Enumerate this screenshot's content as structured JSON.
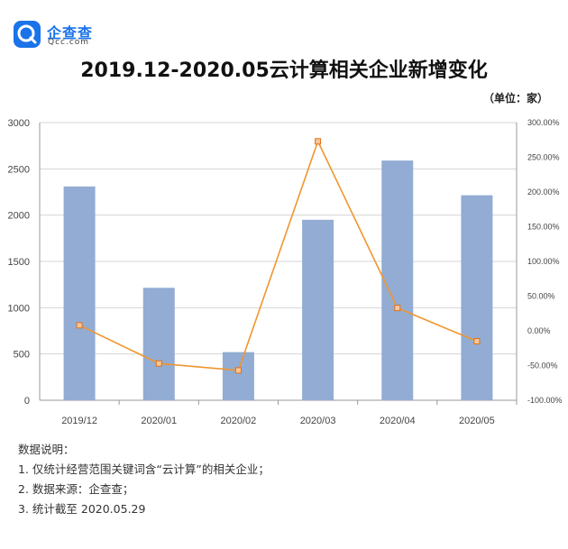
{
  "logo": {
    "cn": "企查查",
    "en": "Qcc.com"
  },
  "chart_data": {
    "type": "bar",
    "title": "2019.12-2020.05云计算相关企业新增变化",
    "unit_label": "（单位：家）",
    "categories": [
      "2019/12",
      "2020/01",
      "2020/02",
      "2020/03",
      "2020/04",
      "2020/05"
    ],
    "series": [
      {
        "type": "bar",
        "axis": "left",
        "values": [
          2310,
          1215,
          520,
          1950,
          2590,
          2215
        ],
        "color": "#92acd3"
      },
      {
        "type": "line",
        "axis": "right",
        "values": [
          8,
          -47,
          -57,
          273,
          33,
          -15
        ],
        "color": "#f0962e"
      }
    ],
    "y_left": {
      "min": 0,
      "max": 3000,
      "ticks": [
        "0",
        "500",
        "1000",
        "1500",
        "2000",
        "2500",
        "3000"
      ]
    },
    "y_right": {
      "min": -100,
      "max": 300,
      "ticks": [
        "-100.00%",
        "-50.00%",
        "0.00%",
        "50.00%",
        "100.00%",
        "150.00%",
        "200.00%",
        "250.00%",
        "300.00%"
      ]
    },
    "grid": true
  },
  "notes": {
    "heading": "数据说明：",
    "items": [
      "1. 仅统计经营范围关键词含“云计算”的相关企业；",
      "2. 数据来源：企查查；",
      "3. 统计截至 2020.05.29"
    ]
  }
}
